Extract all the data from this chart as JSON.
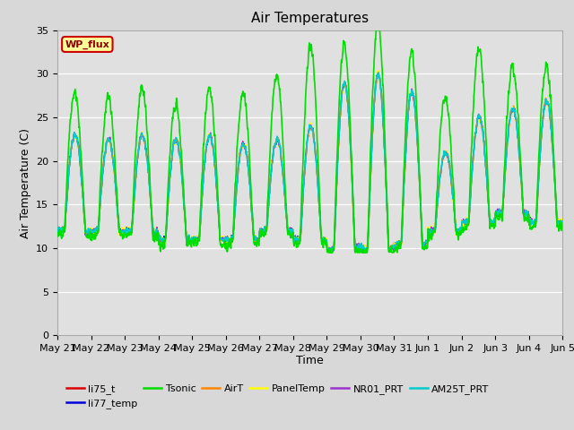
{
  "title": "Air Temperatures",
  "ylabel": "Air Temperature (C)",
  "xlabel": "Time",
  "ylim": [
    0,
    35
  ],
  "yticks": [
    0,
    5,
    10,
    15,
    20,
    25,
    30,
    35
  ],
  "fig_bg_color": "#d8d8d8",
  "plot_bg_color": "#e0e0e0",
  "legend_entries": [
    "li75_t",
    "li77_temp",
    "Tsonic",
    "AirT",
    "PanelTemp",
    "NR01_PRT",
    "AM25T_PRT"
  ],
  "legend_colors": [
    "#dd0000",
    "#0000dd",
    "#00dd00",
    "#ff8800",
    "#ffff00",
    "#9933cc",
    "#00cccc"
  ],
  "annotation_text": "WP_flux",
  "annotation_bg": "#ffff99",
  "annotation_border": "#cc0000",
  "date_labels": [
    "May 21",
    "May 22",
    "May 23",
    "May 24",
    "May 25",
    "May 26",
    "May 27",
    "May 28",
    "May 29",
    "May 30",
    "May 31",
    "Jun 1",
    "Jun 2",
    "Jun 3",
    "Jun 4",
    "Jun 5"
  ],
  "n_days": 15,
  "samples_per_day": 144,
  "title_fontsize": 11,
  "label_fontsize": 9,
  "tick_fontsize": 8,
  "legend_fontsize": 8
}
